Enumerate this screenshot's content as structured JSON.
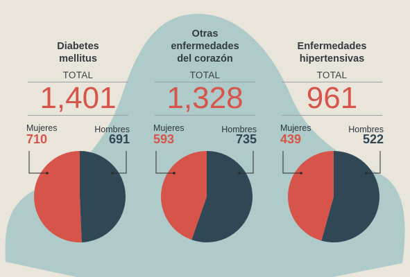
{
  "colors": {
    "women": "#d7544a",
    "men": "#304856",
    "blob": "#9dc3c4",
    "background": "#e9e5db"
  },
  "labels": {
    "total": "TOTAL",
    "women": "Mujeres",
    "men": "Hombres"
  },
  "chart_data": [
    {
      "type": "pie",
      "title": "Diabetes\nmellitus",
      "total": "1,401",
      "categories": [
        "Mujeres",
        "Hombres"
      ],
      "values": [
        710,
        691
      ],
      "value_labels": [
        "710",
        "691"
      ]
    },
    {
      "type": "pie",
      "title": "Otras\nenfermedades\ndel corazón",
      "total": "1,328",
      "categories": [
        "Mujeres",
        "Hombres"
      ],
      "values": [
        593,
        735
      ],
      "value_labels": [
        "593",
        "735"
      ]
    },
    {
      "type": "pie",
      "title": "Enfermedades\nhipertensivas",
      "total": "961",
      "categories": [
        "Mujeres",
        "Hombres"
      ],
      "values": [
        439,
        522
      ],
      "value_labels": [
        "439",
        "522"
      ]
    }
  ]
}
